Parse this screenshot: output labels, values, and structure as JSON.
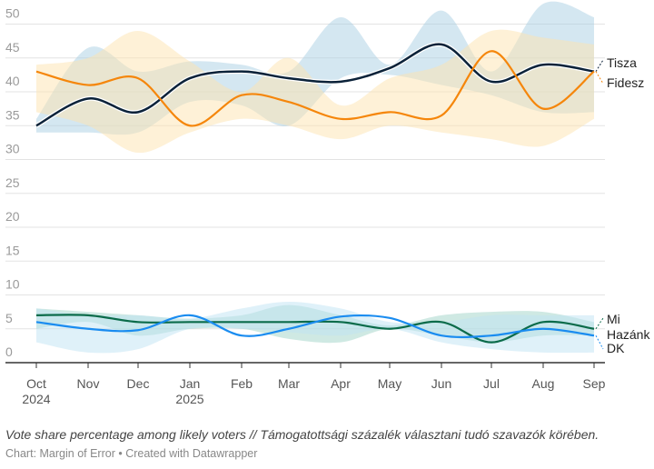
{
  "chart_data": {
    "type": "line",
    "x": [
      "Oct 2024",
      "Nov",
      "Dec",
      "Jan 2025",
      "Feb",
      "Mar",
      "Apr",
      "May",
      "Jun",
      "Jul",
      "Aug",
      "Sep"
    ],
    "x_ticks": [
      [
        "Oct",
        "2024"
      ],
      [
        "Nov",
        ""
      ],
      [
        "Dec",
        ""
      ],
      [
        "Jan",
        "2025"
      ],
      [
        "Feb",
        ""
      ],
      [
        "Mar",
        ""
      ],
      [
        "Apr",
        ""
      ],
      [
        "May",
        ""
      ],
      [
        "Jun",
        ""
      ],
      [
        "Jul",
        ""
      ],
      [
        "Aug",
        ""
      ],
      [
        "Sep",
        ""
      ]
    ],
    "y_ticks": [
      0,
      5,
      10,
      15,
      20,
      25,
      30,
      35,
      40,
      45,
      50
    ],
    "ylim": [
      0,
      52
    ],
    "grid": true,
    "series": [
      {
        "name": "Tisza",
        "color": "#0b2239",
        "band_color": "#a9cfe4",
        "values": [
          35,
          39,
          37,
          42,
          43,
          42,
          41.5,
          43.5,
          47,
          41.5,
          44,
          43
        ],
        "upper": [
          36,
          46.5,
          43,
          44.5,
          44,
          43,
          51,
          44,
          52,
          43,
          53,
          51
        ],
        "lower": [
          34,
          34,
          34,
          38.5,
          38,
          35,
          42,
          42.5,
          41,
          39.5,
          37,
          37
        ]
      },
      {
        "name": "Fidesz",
        "color": "#f5860b",
        "band_color": "#fde4b0",
        "values": [
          43,
          41,
          42,
          35,
          39.5,
          38.5,
          36,
          37,
          36.5,
          46,
          37.5,
          43
        ],
        "upper": [
          44,
          45,
          49,
          44.5,
          40,
          45,
          38,
          42,
          44,
          49,
          48,
          47
        ],
        "lower": [
          37,
          35,
          31,
          34,
          36,
          35,
          33,
          35,
          34,
          33,
          32,
          36
        ]
      },
      {
        "name": "Mi Hazánk",
        "color": "#0b6b4a",
        "band_color": "#9fd4c8",
        "values": [
          7,
          7,
          6,
          6,
          6,
          6,
          6,
          5,
          6,
          3,
          6,
          5
        ],
        "upper": [
          8,
          7.5,
          7,
          6.5,
          7,
          8.5,
          7,
          5.5,
          7,
          7.5,
          7.5,
          6
        ],
        "lower": [
          5,
          6,
          4,
          5,
          5,
          3.5,
          3,
          5,
          4,
          3,
          4,
          4
        ]
      },
      {
        "name": "DK",
        "color": "#1a8cf0",
        "band_color": "#bfe3f4",
        "values": [
          6,
          5,
          4.8,
          7,
          4,
          5,
          6.8,
          6.6,
          4,
          4,
          5,
          4
        ],
        "upper": [
          8,
          7,
          7,
          6.5,
          8,
          9,
          8,
          6,
          6,
          7,
          7,
          7
        ],
        "lower": [
          3,
          1.5,
          2,
          5,
          5,
          4.5,
          4,
          5,
          3,
          2,
          1.5,
          1.5
        ]
      }
    ],
    "labels": {
      "tisza": "Tisza",
      "fidesz": "Fidesz",
      "mi1": "Mi",
      "mi2": "Hazánk",
      "dk": "DK"
    },
    "caption": "Vote share percentage among likely voters // Támogatottsági százalék választani tudó szavazók körében.",
    "credit": "Chart: Margin of Error • Created with Datawrapper"
  }
}
